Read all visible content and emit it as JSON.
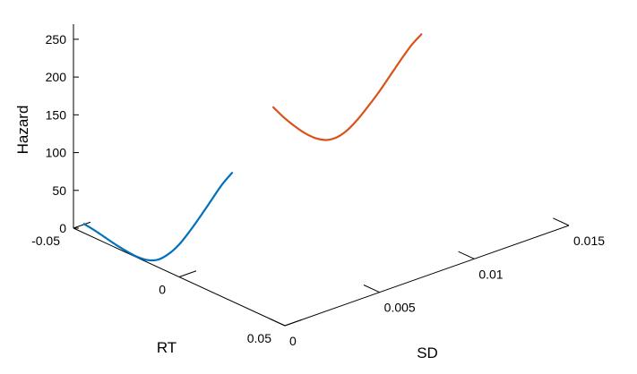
{
  "chart_data": {
    "type": "line",
    "projection": "3d",
    "axes": {
      "x": {
        "label": "RT",
        "range": [
          -0.05,
          0.05
        ],
        "ticks": [
          -0.05,
          0,
          0.05
        ],
        "tick_labels": [
          "-0.05",
          "0",
          "0.05"
        ]
      },
      "y": {
        "label": "SD",
        "range": [
          0,
          0.015
        ],
        "ticks": [
          0,
          0.005,
          0.01,
          0.015
        ],
        "tick_labels": [
          "0",
          "0.005",
          "0.01",
          "0.015"
        ]
      },
      "z": {
        "label": "Hazard",
        "range": [
          0,
          270
        ],
        "ticks": [
          0,
          50,
          100,
          150,
          200,
          250
        ],
        "tick_labels": [
          "0",
          "50",
          "100",
          "150",
          "200",
          "250"
        ]
      }
    },
    "grid": false,
    "series": [
      {
        "color": "#0072BD",
        "sd": 0,
        "rt": [
          -0.045,
          -0.04,
          -0.035,
          -0.03,
          -0.025,
          -0.02,
          -0.015,
          -0.01,
          -0.005,
          0,
          0.005,
          0.01,
          0.015,
          0.02,
          0.025
        ],
        "hazard": [
          12,
          10,
          7,
          4,
          2,
          1,
          3,
          10,
          24,
          43,
          67,
          93,
          120,
          147,
          170
        ]
      },
      {
        "color": "#D95319",
        "sd": 0.01,
        "rt": [
          -0.045,
          -0.04,
          -0.035,
          -0.03,
          -0.025,
          -0.02,
          -0.015,
          -0.01,
          -0.005,
          0,
          0.005,
          0.01,
          0.015,
          0.02,
          0.025
        ],
        "hazard": [
          78,
          71,
          66,
          63,
          63,
          67,
          77,
          93,
          114,
          138,
          163,
          190,
          217,
          243,
          265
        ]
      }
    ]
  }
}
